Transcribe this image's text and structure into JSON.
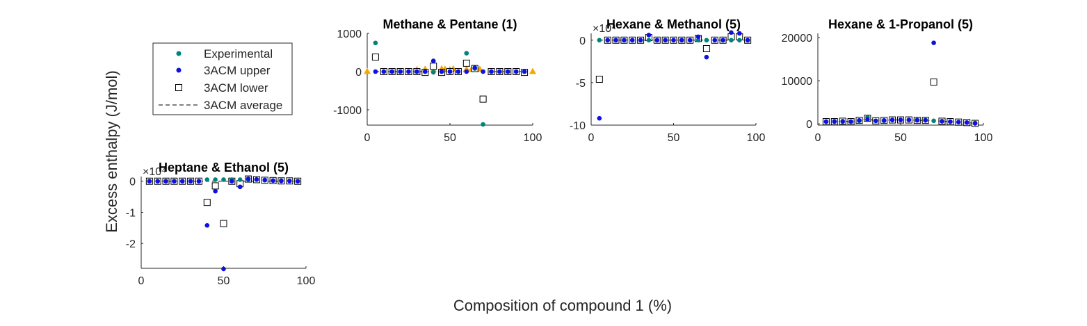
{
  "figure": {
    "ylabel": "Excess enthalpy (J/mol)",
    "xlabel": "Composition of compound 1 (%)"
  },
  "legend": {
    "entries": [
      "Experimental",
      "3ACM upper",
      "3ACM lower",
      "3ACM average"
    ],
    "position": "top-left"
  },
  "colors": {
    "experimental": "#00847a",
    "upper": "#1010e0",
    "lower_edge": "#000000",
    "extra": "#f5a800"
  },
  "chart_data": [
    {
      "type": "scatter",
      "title": "Methane & Pentane (1)",
      "xlim": [
        0,
        100
      ],
      "ylim": [
        -1400,
        1000
      ],
      "xticks": [
        "0",
        "50",
        "100"
      ],
      "yticks": [
        "1000",
        "0",
        "-1000"
      ],
      "exponent": "",
      "x": [
        5,
        10,
        15,
        20,
        25,
        30,
        35,
        40,
        45,
        50,
        55,
        60,
        65,
        70,
        75,
        80,
        85,
        90,
        95
      ],
      "series": [
        {
          "name": "Experimental",
          "values": [
            750,
            0,
            0,
            0,
            0,
            0,
            0,
            -20,
            0,
            0,
            0,
            480,
            80,
            -1380,
            0,
            0,
            0,
            0,
            0
          ]
        },
        {
          "name": "3ACM upper",
          "values": [
            0,
            0,
            0,
            0,
            0,
            0,
            0,
            280,
            0,
            0,
            0,
            0,
            100,
            0,
            0,
            0,
            0,
            0,
            0
          ]
        },
        {
          "name": "3ACM lower",
          "values": [
            380,
            0,
            0,
            0,
            0,
            0,
            -20,
            140,
            -20,
            0,
            0,
            220,
            80,
            -720,
            0,
            0,
            0,
            0,
            -20
          ]
        },
        {
          "name": "3ACM average",
          "values": [
            0,
            0,
            0,
            0,
            0,
            0,
            0,
            0,
            0,
            0,
            0,
            0,
            0,
            0,
            0,
            0,
            0,
            0,
            0
          ]
        }
      ],
      "extra_points": {
        "x": [
          0,
          30,
          35,
          40,
          45,
          47,
          50,
          52,
          60,
          63,
          68,
          100
        ],
        "y": [
          10,
          60,
          70,
          60,
          80,
          70,
          60,
          80,
          70,
          60,
          70,
          10
        ]
      }
    },
    {
      "type": "scatter",
      "title": "Hexane & Methanol (5)",
      "xlim": [
        0,
        100
      ],
      "ylim": [
        -10,
        0.8
      ],
      "xticks": [
        "0",
        "50",
        "100"
      ],
      "yticks": [
        "0",
        "-5",
        "-10"
      ],
      "exponent": "×10⁴",
      "x": [
        5,
        10,
        15,
        20,
        25,
        30,
        35,
        40,
        45,
        50,
        55,
        60,
        65,
        70,
        75,
        80,
        85,
        90,
        95
      ],
      "series": [
        {
          "name": "Experimental",
          "values": [
            0,
            0,
            0,
            0,
            0,
            0,
            0,
            0,
            0,
            0,
            0,
            0,
            0,
            0,
            0,
            0,
            0,
            0,
            0
          ]
        },
        {
          "name": "3ACM upper",
          "values": [
            -9.2,
            0,
            0,
            0,
            0,
            0,
            0.6,
            0,
            0,
            0,
            0,
            0,
            0.4,
            -2.0,
            0,
            0,
            0.9,
            0.8,
            0
          ]
        },
        {
          "name": "3ACM lower",
          "values": [
            -4.6,
            0,
            0,
            0,
            0,
            0,
            0.3,
            0,
            0,
            0,
            0,
            0,
            0.2,
            -1.0,
            0,
            0,
            0.4,
            0.4,
            0
          ]
        },
        {
          "name": "3ACM average",
          "values": [
            0,
            0,
            0,
            0,
            0,
            0,
            0,
            0,
            0,
            0,
            0,
            0,
            0,
            0,
            0,
            0,
            0,
            0,
            0
          ]
        }
      ]
    },
    {
      "type": "scatter",
      "title": "Hexane & 1-Propanol (5)",
      "xlim": [
        0,
        100
      ],
      "ylim": [
        -300,
        21000
      ],
      "xticks": [
        "0",
        "50",
        "100"
      ],
      "yticks": [
        "20000",
        "10000",
        "0"
      ],
      "exponent": "",
      "x": [
        5,
        10,
        15,
        20,
        25,
        30,
        35,
        40,
        45,
        50,
        55,
        60,
        65,
        70,
        75,
        80,
        85,
        90,
        95
      ],
      "series": [
        {
          "name": "Experimental",
          "values": [
            500,
            600,
            500,
            500,
            700,
            1500,
            700,
            700,
            900,
            900,
            900,
            900,
            900,
            700,
            600,
            500,
            400,
            300,
            200
          ]
        },
        {
          "name": "3ACM upper",
          "values": [
            500,
            500,
            600,
            500,
            800,
            1000,
            700,
            800,
            900,
            900,
            900,
            800,
            800,
            18800,
            600,
            500,
            400,
            300,
            100
          ]
        },
        {
          "name": "3ACM lower",
          "values": [
            500,
            500,
            600,
            500,
            800,
            1300,
            700,
            800,
            900,
            900,
            900,
            800,
            800,
            9700,
            600,
            500,
            400,
            300,
            100
          ]
        },
        {
          "name": "3ACM average",
          "values": [
            500,
            500,
            600,
            500,
            800,
            1100,
            700,
            800,
            900,
            900,
            900,
            800,
            800,
            700,
            600,
            500,
            400,
            300,
            100
          ]
        }
      ]
    },
    {
      "type": "scatter",
      "title": "Heptane & Ethanol (5)",
      "xlim": [
        0,
        100
      ],
      "ylim": [
        -2.8,
        0.15
      ],
      "xticks": [
        "0",
        "50",
        "100"
      ],
      "yticks": [
        "0",
        "-1",
        "-2"
      ],
      "exponent": "×10⁴",
      "x": [
        5,
        10,
        15,
        20,
        25,
        30,
        35,
        40,
        45,
        50,
        55,
        60,
        65,
        70,
        75,
        80,
        85,
        90,
        95
      ],
      "series": [
        {
          "name": "Experimental",
          "values": [
            0,
            0,
            0,
            0,
            0,
            0,
            0,
            0.05,
            0.05,
            0.05,
            0.05,
            0.05,
            0.05,
            0.05,
            0.03,
            0.02,
            0.02,
            0.01,
            0
          ]
        },
        {
          "name": "3ACM upper",
          "values": [
            0,
            0,
            0,
            0,
            0,
            0,
            0,
            -1.42,
            -0.32,
            -2.82,
            0,
            -0.18,
            0.08,
            0.06,
            0.04,
            0.02,
            0.01,
            0.01,
            0
          ]
        },
        {
          "name": "3ACM lower",
          "values": [
            0,
            0,
            0,
            0,
            0,
            0,
            0,
            -0.68,
            -0.15,
            -1.36,
            0,
            -0.08,
            0.07,
            0.05,
            0.03,
            0.02,
            0.01,
            0.01,
            0
          ]
        },
        {
          "name": "3ACM average",
          "values": [
            0,
            0,
            0,
            0,
            0,
            0,
            0,
            0,
            0,
            0,
            0,
            0,
            0,
            0,
            0,
            0,
            0,
            0,
            0
          ]
        }
      ]
    }
  ]
}
